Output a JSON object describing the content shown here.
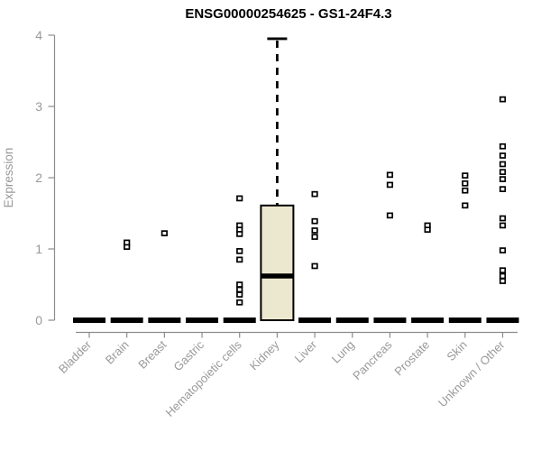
{
  "chart_data": {
    "type": "boxplot",
    "title": "ENSG00000254625 - GS1-24F4.3",
    "ylabel": "Expression",
    "xlabel": "",
    "ylim": [
      0,
      4
    ],
    "yticks": [
      0,
      1,
      2,
      3,
      4
    ],
    "grid": false,
    "legend": null,
    "categories": [
      "Bladder",
      "Brain",
      "Breast",
      "Gastric",
      "Hematopoietic cells",
      "Kidney",
      "Liver",
      "Lung",
      "Pancreas",
      "Prostate",
      "Skin",
      "Unknown / Other"
    ],
    "colors": {
      "box_fill": "#ece7cf",
      "box_stroke": "#000000",
      "median": "#000000",
      "axis": "#8c8c8c",
      "tick_label": "#999999",
      "title": "#000000",
      "point_stroke": "#000000",
      "point_fill": "#ffffff",
      "background": "#ffffff"
    },
    "boxes": [
      {
        "category": "Bladder",
        "median": 0,
        "q1": 0,
        "q3": 0,
        "whisker_low": 0,
        "whisker_high": 0,
        "outliers": []
      },
      {
        "category": "Brain",
        "median": 0,
        "q1": 0,
        "q3": 0,
        "whisker_low": 0,
        "whisker_high": 0,
        "outliers": [
          1.03,
          1.09
        ]
      },
      {
        "category": "Breast",
        "median": 0,
        "q1": 0,
        "q3": 0,
        "whisker_low": 0,
        "whisker_high": 0,
        "outliers": [
          1.22
        ]
      },
      {
        "category": "Gastric",
        "median": 0,
        "q1": 0,
        "q3": 0,
        "whisker_low": 0,
        "whisker_high": 0,
        "outliers": []
      },
      {
        "category": "Hematopoietic cells",
        "median": 0,
        "q1": 0,
        "q3": 0,
        "whisker_low": 0,
        "whisker_high": 0,
        "outliers": [
          1.71,
          1.33,
          1.27,
          1.21,
          0.97,
          0.85,
          0.5,
          0.43,
          0.36,
          0.25
        ]
      },
      {
        "category": "Kidney",
        "median": 0.62,
        "q1": 0,
        "q3": 1.61,
        "whisker_low": 0,
        "whisker_high": 3.95,
        "outliers": []
      },
      {
        "category": "Liver",
        "median": 0,
        "q1": 0,
        "q3": 0,
        "whisker_low": 0,
        "whisker_high": 0,
        "outliers": [
          1.77,
          1.39,
          1.26,
          1.17,
          0.76
        ]
      },
      {
        "category": "Lung",
        "median": 0,
        "q1": 0,
        "q3": 0,
        "whisker_low": 0,
        "whisker_high": 0,
        "outliers": []
      },
      {
        "category": "Pancreas",
        "median": 0,
        "q1": 0,
        "q3": 0,
        "whisker_low": 0,
        "whisker_high": 0,
        "outliers": [
          2.04,
          1.9,
          1.47
        ]
      },
      {
        "category": "Prostate",
        "median": 0,
        "q1": 0,
        "q3": 0,
        "whisker_low": 0,
        "whisker_high": 0,
        "outliers": [
          1.33,
          1.27
        ]
      },
      {
        "category": "Skin",
        "median": 0,
        "q1": 0,
        "q3": 0,
        "whisker_low": 0,
        "whisker_high": 0,
        "outliers": [
          2.03,
          1.92,
          1.82,
          1.61
        ]
      },
      {
        "category": "Unknown / Other",
        "median": 0,
        "q1": 0,
        "q3": 0,
        "whisker_low": 0,
        "whisker_high": 0,
        "outliers": [
          3.1,
          2.44,
          2.31,
          2.19,
          2.08,
          1.98,
          1.84,
          1.43,
          1.33,
          0.98,
          0.7,
          0.62,
          0.55
        ]
      }
    ]
  }
}
